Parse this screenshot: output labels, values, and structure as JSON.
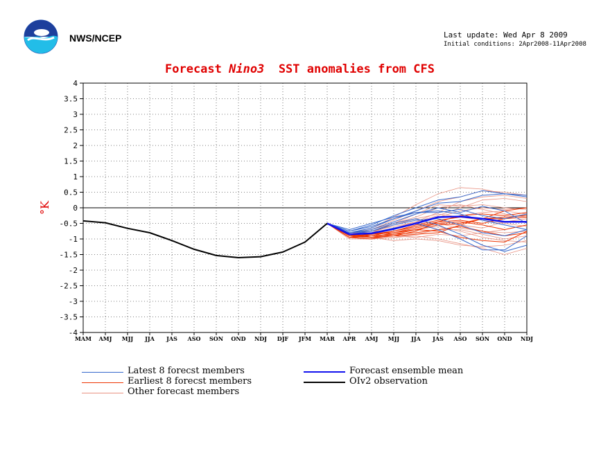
{
  "header": {
    "org": "NWS/NCEP",
    "last_update": "Last update: Wed Apr  8 2009",
    "initial_conditions": "Initial conditions: 2Apr2008-11Apr2008"
  },
  "title": {
    "part1": "Forecast",
    "part2": "Nino3",
    "part3": "SST anomalies from CFS"
  },
  "legend": [
    {
      "label": "Latest 8 forecst members",
      "color": "#3366cc"
    },
    {
      "label": "Earliest 8 forecst members",
      "color": "#ee3300"
    },
    {
      "label": "Other forecast members",
      "color": "#e89080"
    },
    {
      "label": "Forecast ensemble mean",
      "color": "#1111ee"
    },
    {
      "label": "OIv2 observation",
      "color": "#000000"
    }
  ],
  "chart_data": {
    "type": "line",
    "ylabel": "°K",
    "ylim": [
      -4,
      4
    ],
    "yticks": [
      "4",
      "3.5",
      "3",
      "2.5",
      "2",
      "1.5",
      "1",
      "0.5",
      "0",
      "-0.5",
      "-1",
      "-1.5",
      "-2",
      "-2.5",
      "-3",
      "-3.5",
      "-4"
    ],
    "categories": [
      "MAM",
      "AMJ",
      "MJJ",
      "JJA",
      "JAS",
      "ASO",
      "SON",
      "OND",
      "NDJ",
      "DJF",
      "JFM",
      "MAR",
      "APR",
      "AMJ",
      "MJJ",
      "JJA",
      "JAS",
      "ASO",
      "SON",
      "OND",
      "NDJ"
    ],
    "grid": true,
    "series": [
      {
        "name": "OIv2 observation",
        "color": "#000000",
        "values": [
          -0.42,
          -0.48,
          -0.66,
          -0.8,
          -1.05,
          -1.33,
          -1.53,
          -1.6,
          -1.57,
          -1.42,
          -1.1,
          -0.5,
          null,
          null,
          null,
          null,
          null,
          null,
          null,
          null,
          null
        ]
      },
      {
        "name": "Forecast ensemble mean",
        "color": "#1111ee",
        "values": [
          null,
          null,
          null,
          null,
          null,
          null,
          null,
          null,
          null,
          null,
          null,
          -0.5,
          -0.85,
          -0.82,
          -0.68,
          -0.5,
          -0.3,
          -0.28,
          -0.35,
          -0.45,
          -0.45
        ]
      }
    ],
    "members": {
      "latest": [
        [
          -0.5,
          -0.75,
          -0.55,
          -0.25,
          0.0,
          0.25,
          0.35,
          0.55,
          0.45,
          0.4
        ],
        [
          -0.5,
          -0.8,
          -0.65,
          -0.35,
          -0.1,
          0.15,
          0.2,
          0.4,
          0.45,
          0.35
        ],
        [
          -0.5,
          -0.7,
          -0.5,
          -0.3,
          -0.15,
          -0.1,
          -0.2,
          -0.4,
          -0.55,
          -0.7
        ],
        [
          -0.5,
          -0.85,
          -0.75,
          -0.5,
          -0.35,
          -0.55,
          -0.85,
          -1.2,
          -1.4,
          -1.2
        ],
        [
          -0.5,
          -0.85,
          -0.8,
          -0.65,
          -0.5,
          -0.7,
          -1.0,
          -1.35,
          -1.35,
          -0.9
        ],
        [
          -0.5,
          -0.8,
          -0.7,
          -0.45,
          -0.2,
          0.0,
          -0.15,
          0.05,
          -0.1,
          -0.5
        ],
        [
          -0.5,
          -0.8,
          -0.75,
          -0.55,
          -0.4,
          -0.35,
          -0.55,
          -0.8,
          -0.9,
          -0.7
        ],
        [
          -0.5,
          -0.75,
          -0.6,
          -0.35,
          -0.15,
          -0.15,
          -0.05,
          -0.25,
          -0.35,
          -0.2
        ]
      ],
      "earliest": [
        [
          -0.5,
          -0.9,
          -0.95,
          -0.9,
          -0.75,
          -0.45,
          -0.25,
          -0.2,
          -0.25,
          -0.15
        ],
        [
          -0.5,
          -0.95,
          -1.0,
          -0.85,
          -0.7,
          -0.55,
          -0.5,
          -0.35,
          -0.3,
          -0.25
        ],
        [
          -0.5,
          -0.85,
          -0.9,
          -0.75,
          -0.6,
          -0.45,
          -0.4,
          -0.5,
          -0.35,
          -0.3
        ],
        [
          -0.5,
          -0.95,
          -0.9,
          -0.85,
          -0.8,
          -0.7,
          -0.6,
          -0.75,
          -0.9,
          -0.8
        ],
        [
          -0.5,
          -0.9,
          -0.85,
          -0.8,
          -0.65,
          -0.5,
          -0.45,
          -0.55,
          -0.7,
          -0.55
        ],
        [
          -0.5,
          -0.85,
          -0.95,
          -0.8,
          -0.7,
          -0.75,
          -0.95,
          -1.05,
          -1.1,
          -0.75
        ],
        [
          -0.5,
          -0.95,
          -0.85,
          -0.75,
          -0.55,
          -0.4,
          -0.3,
          -0.35,
          -0.35,
          -0.2
        ],
        [
          -0.5,
          -0.9,
          -0.95,
          -0.9,
          -0.85,
          -0.8,
          -0.55,
          -0.35,
          -0.1,
          0.0
        ]
      ],
      "other": [
        [
          -0.5,
          -0.85,
          -0.7,
          -0.4,
          -0.1,
          0.2,
          0.35,
          0.55,
          0.5,
          0.4
        ],
        [
          -0.5,
          -0.9,
          -0.8,
          -0.5,
          -0.3,
          0.0,
          0.1,
          -0.05,
          -0.2,
          -0.3
        ],
        [
          -0.5,
          -0.95,
          -1.0,
          -0.95,
          -0.9,
          -1.0,
          -1.15,
          -1.3,
          -1.5,
          -1.3
        ],
        [
          -0.5,
          -0.8,
          -0.65,
          -0.3,
          0.1,
          0.45,
          0.65,
          0.6,
          0.45,
          0.4
        ],
        [
          -0.5,
          -0.9,
          -0.85,
          -0.7,
          -0.5,
          -0.3,
          -0.1,
          0.0,
          -0.05,
          0.0
        ],
        [
          -0.5,
          -0.85,
          -0.95,
          -1.05,
          -1.0,
          -1.05,
          -1.2,
          -1.25,
          -1.2,
          -1.05
        ],
        [
          -0.5,
          -0.9,
          -0.9,
          -0.75,
          -0.55,
          -0.5,
          -0.65,
          -0.75,
          -0.8,
          -0.75
        ],
        [
          -0.5,
          -0.8,
          -0.7,
          -0.5,
          -0.2,
          0.1,
          0.05,
          0.1,
          0.0,
          -0.05
        ],
        [
          -0.5,
          -0.95,
          -0.95,
          -0.85,
          -0.7,
          -0.6,
          -0.75,
          -0.95,
          -1.05,
          -1.1
        ],
        [
          -0.5,
          -0.85,
          -0.8,
          -0.55,
          -0.35,
          -0.2,
          -0.3,
          -0.4,
          -0.5,
          -0.6
        ],
        [
          -0.5,
          -0.9,
          -0.85,
          -0.75,
          -0.6,
          -0.45,
          -0.25,
          -0.15,
          -0.1,
          -0.2
        ],
        [
          -0.5,
          -0.95,
          -1.0,
          -0.9,
          -0.95,
          -0.85,
          -0.9,
          -0.8,
          -0.7,
          -0.55
        ],
        [
          -0.5,
          -0.85,
          -0.75,
          -0.6,
          -0.45,
          -0.25,
          0.0,
          0.25,
          0.3,
          0.2
        ],
        [
          -0.5,
          -0.9,
          -0.95,
          -0.8,
          -0.6,
          -0.5,
          -0.55,
          -0.65,
          -0.45,
          -0.35
        ],
        [
          -0.5,
          -0.8,
          -0.8,
          -0.65,
          -0.45,
          -0.15,
          0.2,
          0.35,
          0.4,
          0.3
        ],
        [
          -0.5,
          -1.0,
          -1.0,
          -0.95,
          -0.85,
          -0.7,
          -0.7,
          -0.85,
          -1.0,
          -0.9
        ]
      ]
    }
  }
}
